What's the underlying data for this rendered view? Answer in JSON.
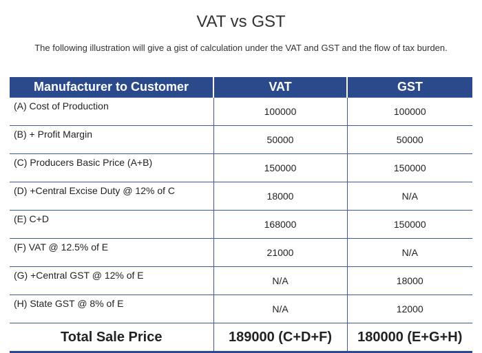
{
  "title": "VAT vs GST",
  "subtitle": "The following illustration will give a gist of calculation under the VAT and GST and the flow of tax burden.",
  "table": {
    "headers": [
      "Manufacturer to Customer",
      "VAT",
      "GST"
    ],
    "rows": [
      [
        "(A) Cost of Production",
        "100000",
        "100000"
      ],
      [
        "(B) + Profit Margin",
        "50000",
        "50000"
      ],
      [
        "(C) Producers Basic Price (A+B)",
        "150000",
        "150000"
      ],
      [
        "(D) +Central Excise Duty @ 12% of C",
        "18000",
        "N/A"
      ],
      [
        "(E) C+D",
        "168000",
        "150000"
      ],
      [
        "(F) VAT @ 12.5% of E",
        "21000",
        "N/A"
      ],
      [
        "(G) +Central GST @ 12% of E",
        "N/A",
        "18000"
      ],
      [
        "(H) State GST @ 8% of E",
        "N/A",
        "12000"
      ]
    ],
    "total": [
      "Total Sale Price",
      "189000 (C+D+F)",
      "180000 (E+G+H)"
    ]
  },
  "colors": {
    "header_bg": "#2b4a8c",
    "header_text": "#ffffff",
    "rule": "#3a5a9e"
  }
}
